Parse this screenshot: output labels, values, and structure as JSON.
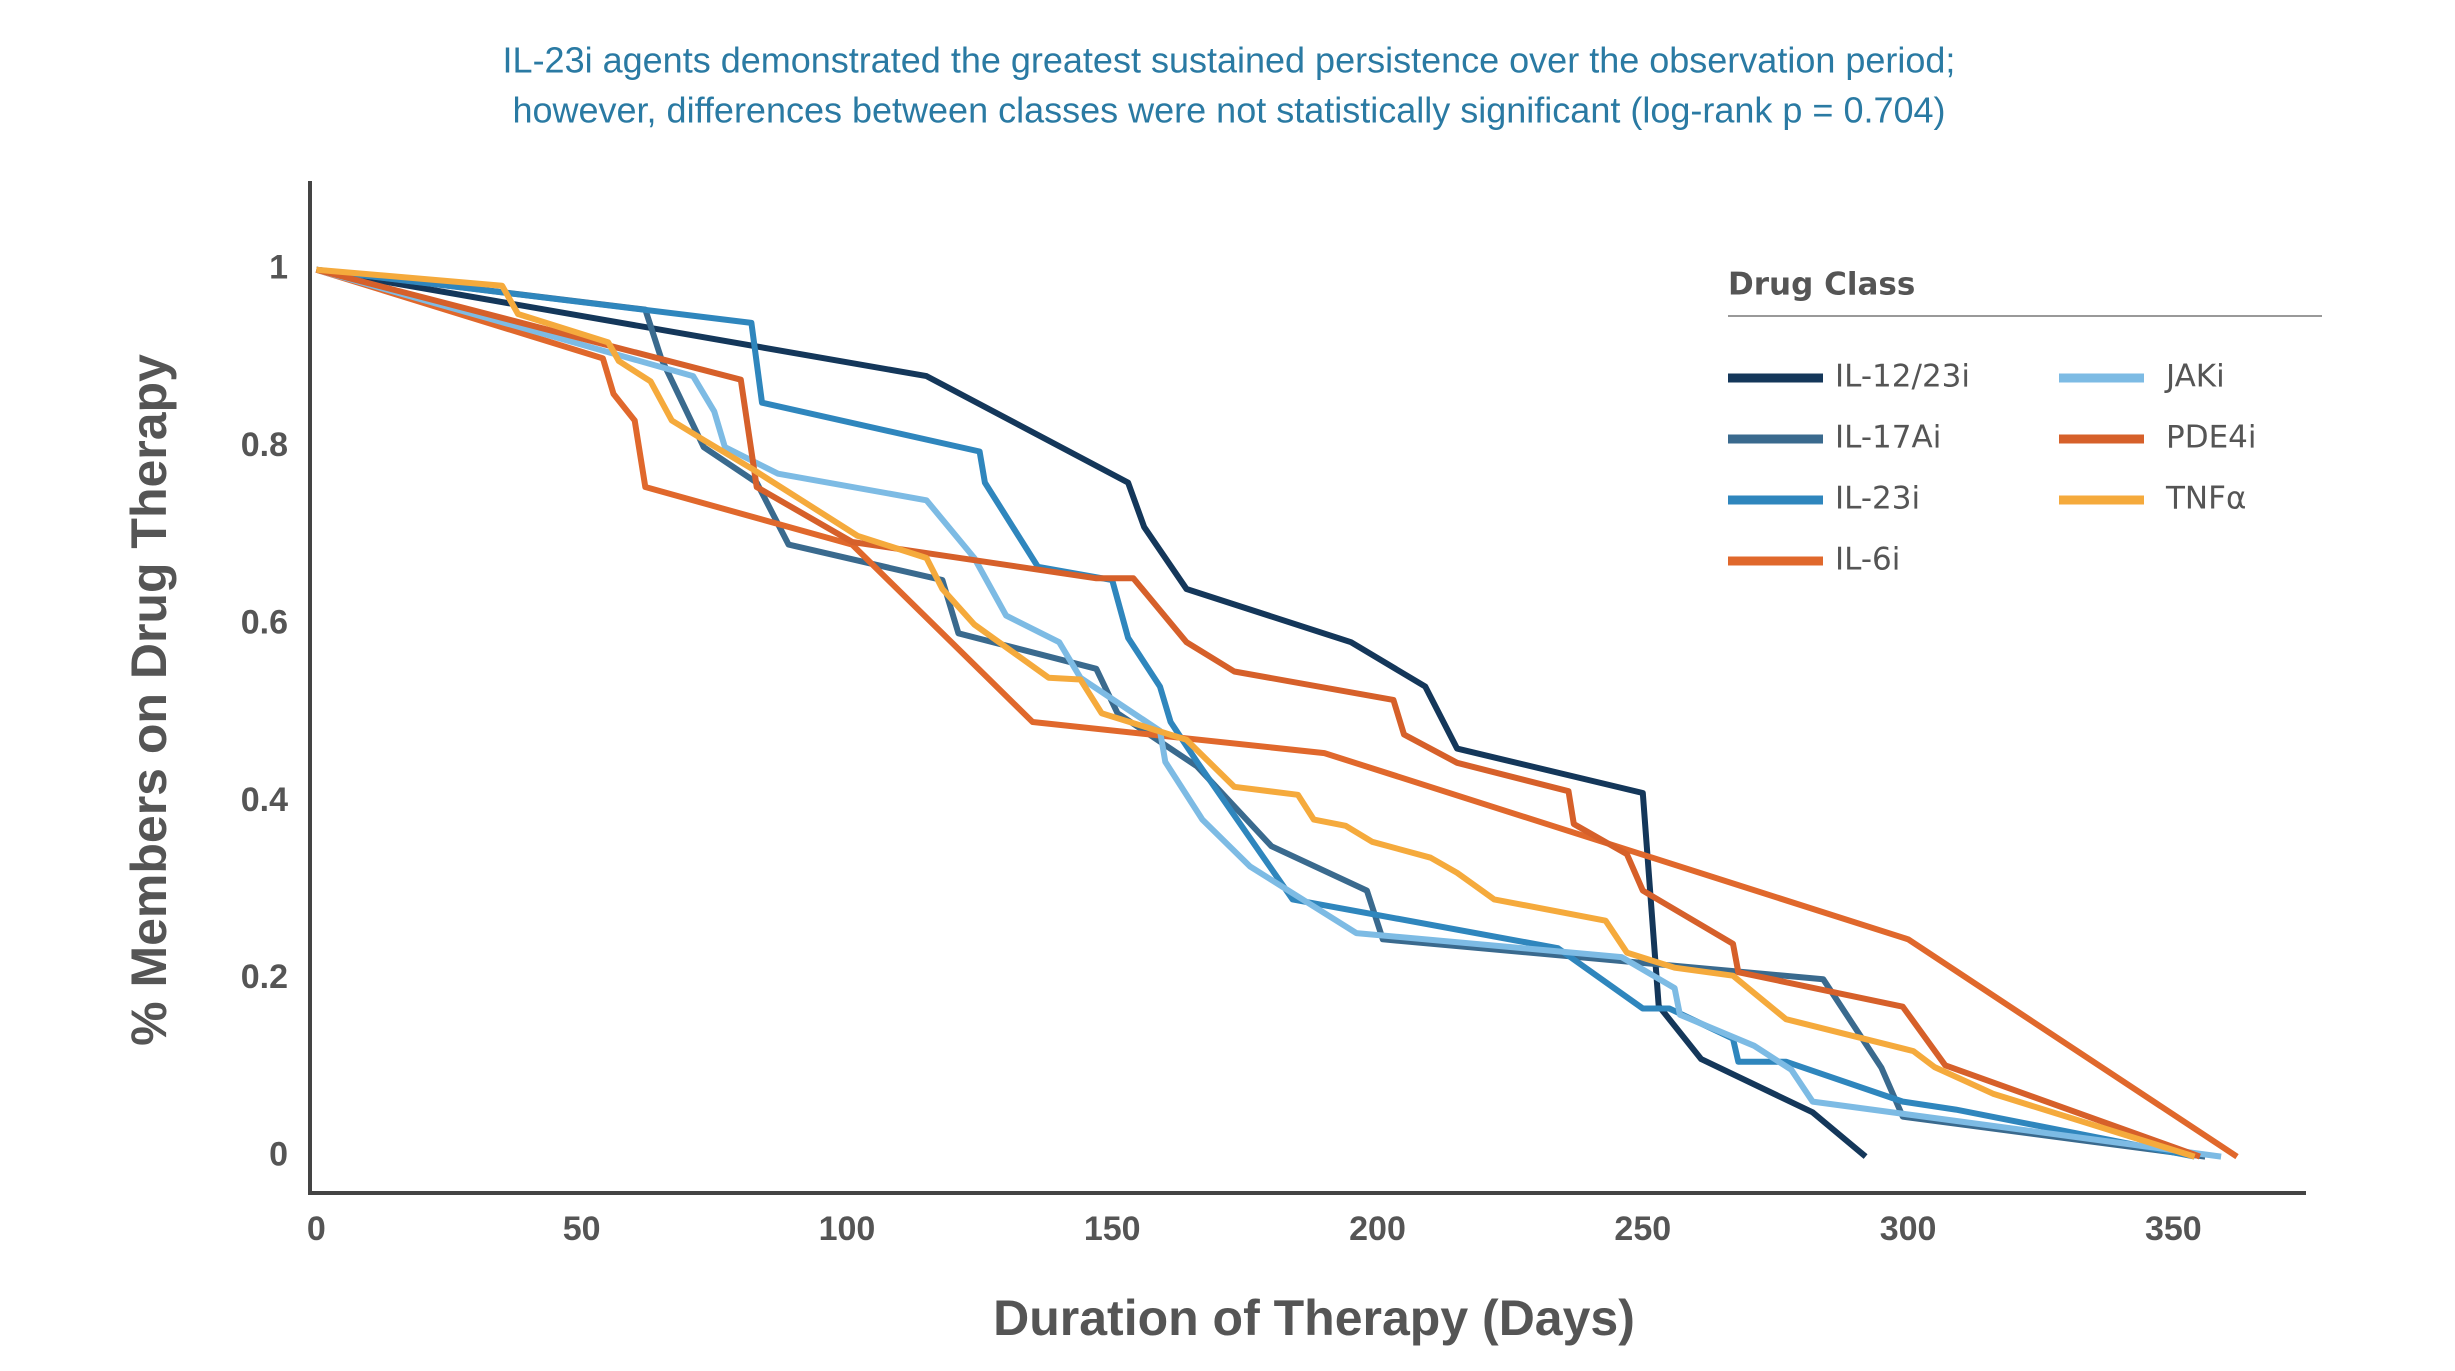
{
  "chart_data": {
    "type": "line",
    "title": [
      "IL-23i agents demonstrated the greatest sustained persistence over the observation period;",
      "however, differences between classes were not statistically significant (log-rank p = 0.704)"
    ],
    "x_label": "Duration of Therapy (Days)",
    "y_label": "% Members on Drug Therapy",
    "legend_title": "Drug Class",
    "legend": "upper right",
    "grid": false,
    "xlim": [
      -1.2,
      375
    ],
    "xticks": [
      0,
      50,
      100,
      150,
      200,
      250,
      300,
      350
    ],
    "ylim": [
      -0.041,
      1.1
    ],
    "yticks": [
      0,
      0.2,
      0.4,
      0.6,
      0.8,
      1
    ],
    "series": [
      {
        "name": "IL-12/23i",
        "color": "#14375a",
        "x": [
          0,
          115,
          153,
          156,
          164,
          195,
          209,
          215,
          250,
          253,
          261,
          282,
          292
        ],
        "values": [
          1,
          0.88,
          0.76,
          0.71,
          0.64,
          0.58,
          0.53,
          0.46,
          0.41,
          0.17,
          0.11,
          0.05,
          0
        ]
      },
      {
        "name": "IL-17Ai",
        "color": "#3a6a8e",
        "x": [
          0,
          62,
          65,
          73,
          83,
          89,
          118,
          121,
          147,
          151,
          166,
          180,
          198,
          201,
          247,
          284,
          295,
          299,
          356
        ],
        "values": [
          1,
          0.955,
          0.9,
          0.8,
          0.76,
          0.69,
          0.65,
          0.59,
          0.55,
          0.5,
          0.44,
          0.35,
          0.3,
          0.245,
          0.22,
          0.2,
          0.1,
          0.045,
          0
        ]
      },
      {
        "name": "IL-23i",
        "color": "#2f86bd",
        "x": [
          0,
          82,
          84,
          125,
          126,
          136,
          150,
          153,
          159,
          161,
          166,
          184,
          234,
          250,
          255,
          267,
          268,
          277,
          299,
          309,
          354
        ],
        "values": [
          1,
          0.94,
          0.85,
          0.795,
          0.76,
          0.665,
          0.65,
          0.585,
          0.53,
          0.49,
          0.445,
          0.29,
          0.235,
          0.167,
          0.167,
          0.133,
          0.107,
          0.107,
          0.062,
          0.053,
          0
        ]
      },
      {
        "name": "IL-6i",
        "color": "#e0682c",
        "x": [
          0,
          54,
          56,
          60,
          62,
          101,
          135,
          190,
          300,
          362
        ],
        "values": [
          1,
          0.9,
          0.86,
          0.83,
          0.755,
          0.69,
          0.49,
          0.455,
          0.245,
          0
        ]
      },
      {
        "name": "JAKi",
        "color": "#7dbbe4",
        "x": [
          0,
          71,
          75,
          77,
          87,
          115,
          124,
          130,
          140,
          144,
          159,
          160,
          167,
          176,
          196,
          246,
          256,
          257,
          271,
          278,
          282,
          359
        ],
        "values": [
          1,
          0.88,
          0.84,
          0.8,
          0.77,
          0.74,
          0.675,
          0.61,
          0.58,
          0.54,
          0.48,
          0.445,
          0.38,
          0.327,
          0.252,
          0.225,
          0.19,
          0.16,
          0.125,
          0.098,
          0.062,
          0
        ]
      },
      {
        "name": "PDE4i",
        "color": "#d6602a",
        "x": [
          0,
          80,
          83,
          101,
          147,
          154,
          164,
          173,
          203,
          205,
          215,
          236,
          237,
          247,
          250,
          267,
          268,
          299,
          307,
          355
        ],
        "values": [
          1,
          0.876,
          0.755,
          0.693,
          0.652,
          0.652,
          0.58,
          0.547,
          0.515,
          0.476,
          0.444,
          0.412,
          0.375,
          0.341,
          0.3,
          0.24,
          0.208,
          0.169,
          0.103,
          0
        ]
      },
      {
        "name": "TNFα",
        "color": "#f5aa3c",
        "x": [
          0,
          35,
          38,
          55,
          57,
          63,
          67,
          73,
          82,
          102,
          115,
          118,
          124,
          138,
          144,
          148,
          164,
          173,
          185,
          188,
          194,
          199,
          210,
          215,
          222,
          243,
          247,
          256,
          267,
          277,
          301,
          305,
          316,
          354
        ],
        "values": [
          1,
          0.982,
          0.95,
          0.918,
          0.897,
          0.874,
          0.83,
          0.808,
          0.776,
          0.7,
          0.675,
          0.64,
          0.6,
          0.54,
          0.538,
          0.5,
          0.47,
          0.417,
          0.408,
          0.38,
          0.373,
          0.355,
          0.337,
          0.32,
          0.29,
          0.266,
          0.23,
          0.213,
          0.204,
          0.155,
          0.119,
          0.101,
          0.071,
          0
        ]
      }
    ]
  }
}
